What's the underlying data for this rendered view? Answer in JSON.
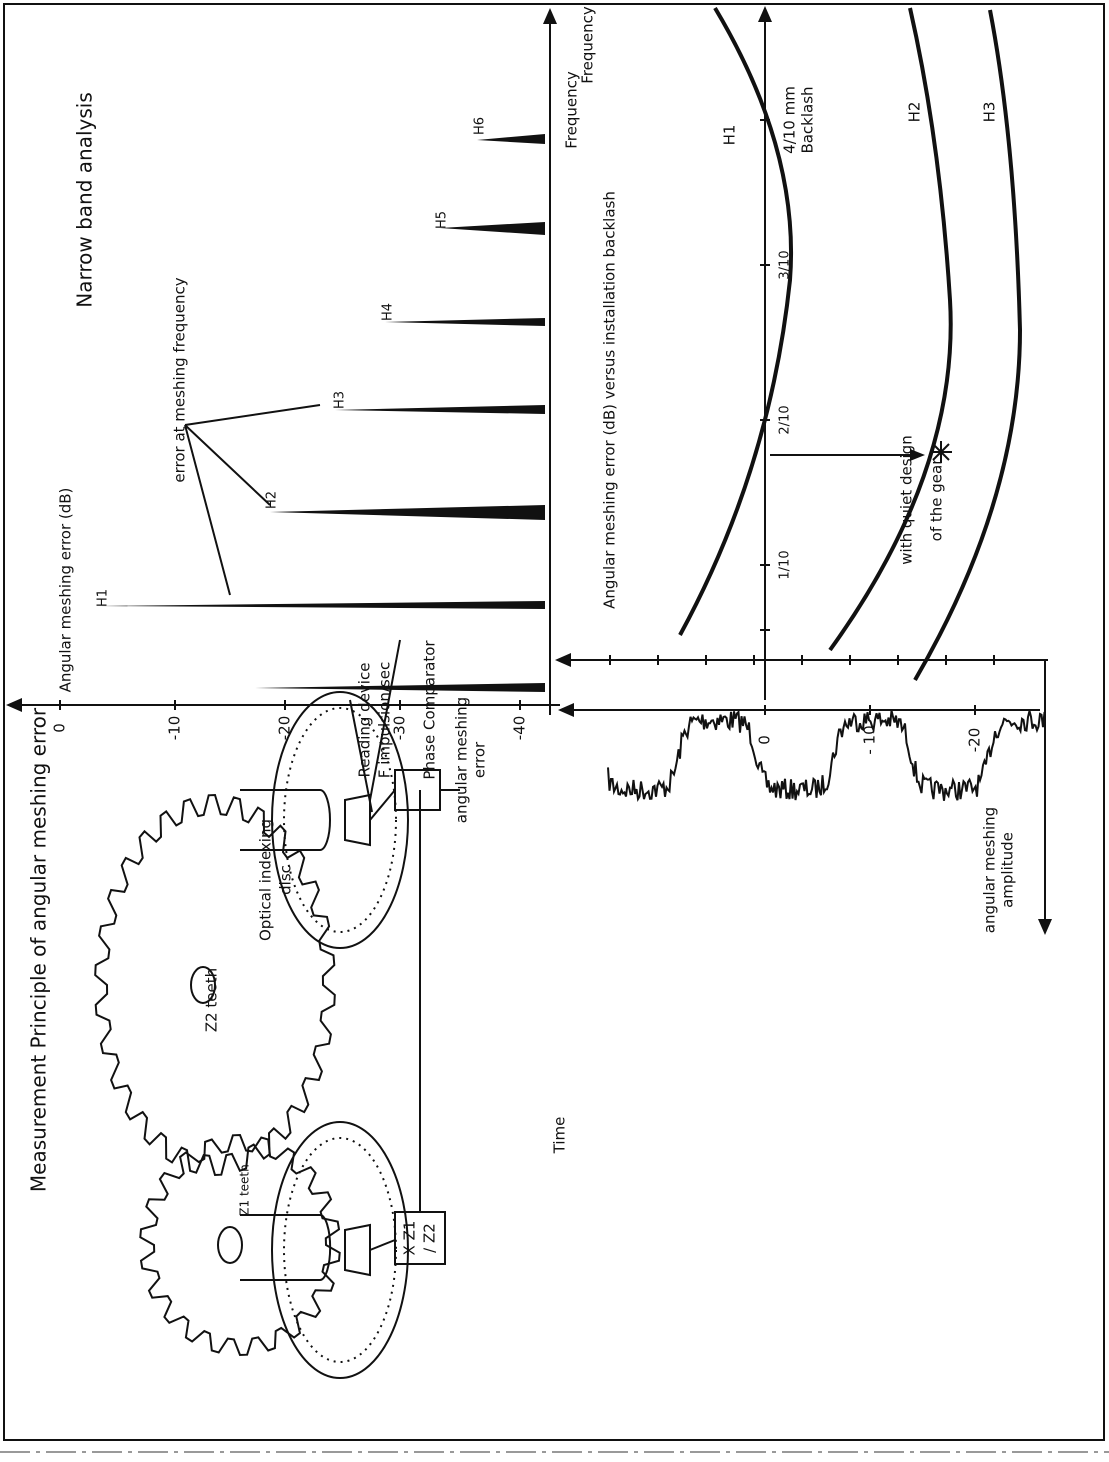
{
  "title": "Measurement Principle of angular meshing error",
  "setup": {
    "gear_2": "Z2 teeth",
    "gear_1": "Z1 teeth",
    "disc": [
      "Optical indexing",
      "disc"
    ],
    "reading": [
      "Reading device",
      "F impulsion/sec"
    ],
    "comparator": "Phase Comparator",
    "output": [
      "angular meshing",
      "error"
    ],
    "ratio": [
      "X Z1",
      "/ Z2"
    ]
  },
  "spectrum": {
    "y_label": "Angular meshing error (dB)",
    "title": "Narrow band analysis",
    "annotation": "error at meshing frequency",
    "x_label": [
      "Frequency",
      "Frequency"
    ],
    "yticks": [
      "0",
      "-10",
      "-20",
      "-30",
      "-40"
    ],
    "harmonics": [
      "H1",
      "H2",
      "H3",
      "H4",
      "H5",
      "H6"
    ]
  },
  "backlash": {
    "title": "Angular meshing error (dB) versus installation backlash",
    "yticks": [
      "0",
      "- 10",
      "-20"
    ],
    "xticks": [
      "1/10",
      "2/10",
      "3/10"
    ],
    "x_label": [
      "4/10 mm",
      "Backlash"
    ],
    "curves": [
      "H1",
      "H2",
      "H3"
    ],
    "note": [
      "with quiet design",
      "of the gear"
    ]
  },
  "signal": {
    "x_label": "Time",
    "y_label": [
      "angular meshing",
      "amplitude"
    ]
  }
}
